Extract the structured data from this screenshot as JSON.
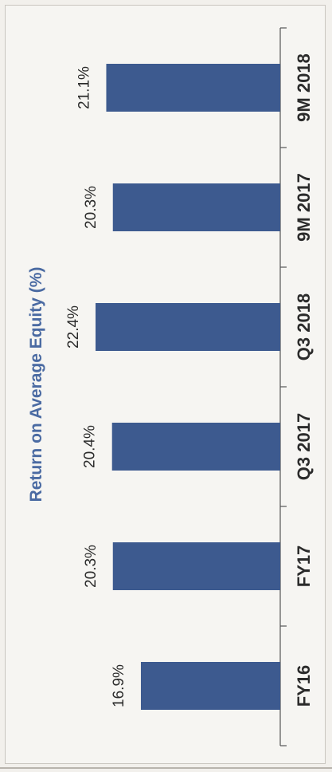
{
  "chart_data": {
    "type": "bar",
    "orientation": "vertical bars, page rotated 90 degrees counter-clockwise",
    "title": "Return on Average Equity (%)",
    "categories": [
      "FY16",
      "FY17",
      "Q3 2017",
      "Q3 2018",
      "9M 2017",
      "9M 2018"
    ],
    "values": [
      16.9,
      20.3,
      20.4,
      22.4,
      20.3,
      21.1
    ],
    "data_labels": [
      "16.9%",
      "20.3%",
      "20.4%",
      "22.4%",
      "20.3%",
      "21.1%"
    ],
    "xlabel": "",
    "ylabel": "",
    "ylim": [
      0,
      22.4
    ],
    "grid": false,
    "legend": "none",
    "colors": {
      "bar": "#3d5a8f",
      "title": "#4a6aa2",
      "text": "#2b2b2b",
      "axis": "#555555"
    }
  }
}
